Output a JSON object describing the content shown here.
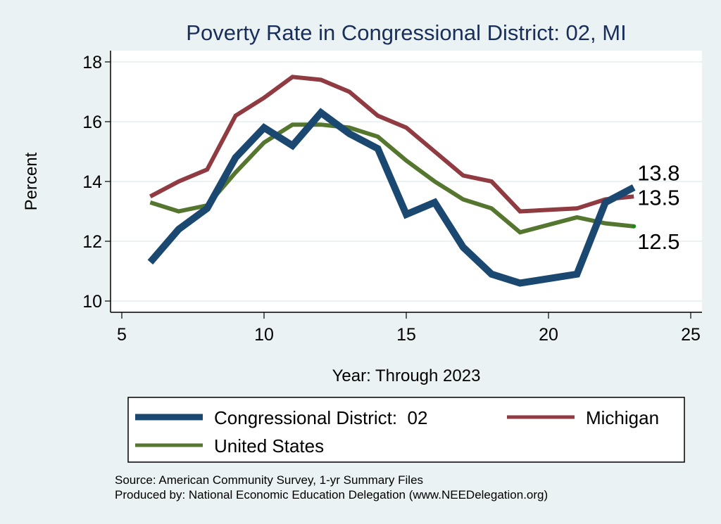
{
  "chart_data": {
    "type": "line",
    "title": "Poverty Rate in Congressional District:  02, MI",
    "xlabel": "Year: Through 2023",
    "ylabel": "Percent",
    "xlim": [
      4.6,
      25.4
    ],
    "ylim": [
      9.6,
      18.4
    ],
    "xticks": [
      5,
      10,
      15,
      20,
      25
    ],
    "yticks": [
      10,
      12,
      14,
      16,
      18
    ],
    "grid": "horizontal",
    "legend_position": "bottom",
    "series": [
      {
        "name": "Congressional District:  02",
        "color": "#1a4870",
        "x": [
          6,
          7,
          8,
          9,
          10,
          11,
          12,
          13,
          14,
          15,
          16,
          17,
          18,
          19,
          21,
          22,
          23
        ],
        "values": [
          11.3,
          12.4,
          13.1,
          14.8,
          15.8,
          15.2,
          16.3,
          15.6,
          15.1,
          12.9,
          13.3,
          11.8,
          10.9,
          10.6,
          10.9,
          13.3,
          13.8
        ],
        "end_label": "13.8"
      },
      {
        "name": "Michigan",
        "color": "#903a41",
        "x": [
          6,
          7,
          8,
          9,
          10,
          11,
          12,
          13,
          14,
          15,
          16,
          17,
          18,
          19,
          21,
          22,
          23
        ],
        "values": [
          13.5,
          14.0,
          14.4,
          16.2,
          16.8,
          17.5,
          17.4,
          17.0,
          16.2,
          15.8,
          15.0,
          14.2,
          14.0,
          13.0,
          13.1,
          13.4,
          13.5
        ],
        "end_label": "13.5"
      },
      {
        "name": "United States",
        "color": "#55762f",
        "x": [
          6,
          7,
          8,
          9,
          10,
          11,
          12,
          13,
          14,
          15,
          16,
          17,
          18,
          19,
          21,
          22,
          23
        ],
        "values": [
          13.3,
          13.0,
          13.2,
          14.3,
          15.3,
          15.9,
          15.9,
          15.8,
          15.5,
          14.7,
          14.0,
          13.4,
          13.1,
          12.3,
          12.8,
          12.6,
          12.5
        ],
        "end_label": "12.5"
      }
    ],
    "notes": [
      "Source: American Community Survey, 1-yr Summary Files",
      "Produced by: National Economic Education Delegation (www.NEEDelegation.org)"
    ]
  },
  "colors": {
    "background": "#eaf2f3",
    "plot_background": "#ffffff",
    "title": "#1a2e5a",
    "grid": "#eaf2f3",
    "end_marker_us": "#1a8a1a"
  }
}
